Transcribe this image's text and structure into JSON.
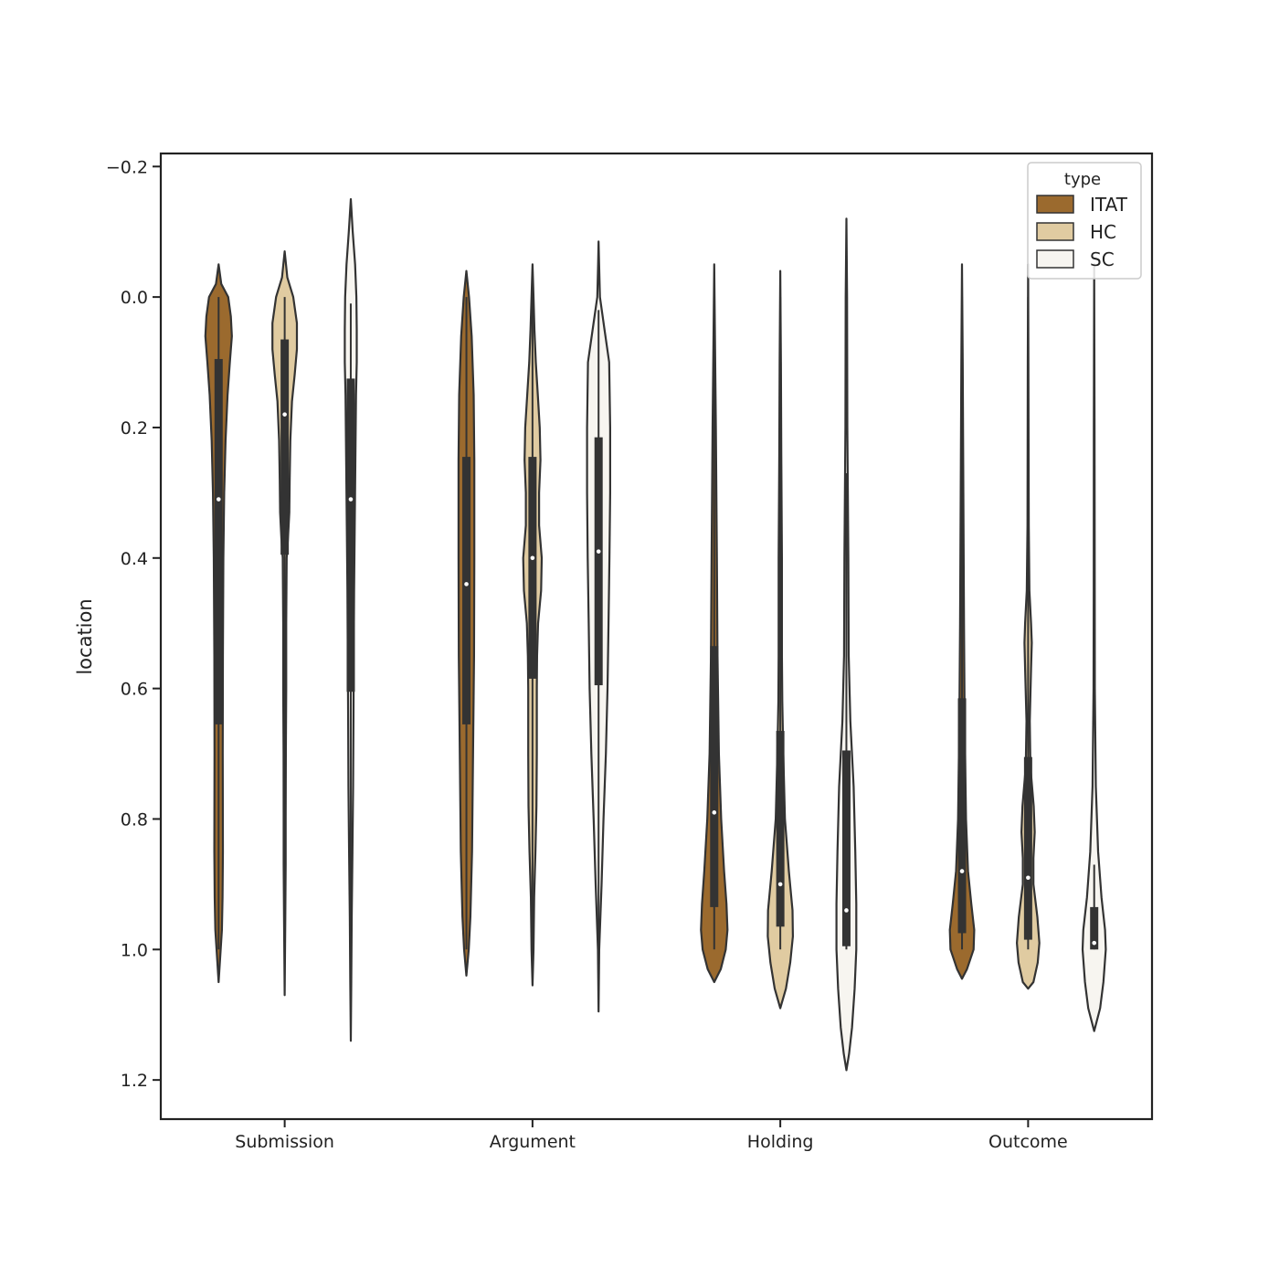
{
  "chart_data": {
    "type": "violin",
    "title": "",
    "xlabel": "",
    "ylabel": "location",
    "categories": [
      "Submission",
      "Argument",
      "Holding",
      "Outcome"
    ],
    "y_inverted": true,
    "ylim": [
      -0.22,
      1.26
    ],
    "yticks": [
      -0.2,
      0.0,
      0.2,
      0.4,
      0.6,
      0.8,
      1.0,
      1.2
    ],
    "ytick_labels": [
      "−0.2",
      "0.0",
      "0.2",
      "0.4",
      "0.6",
      "0.8",
      "1.0",
      "1.2"
    ],
    "grid": false,
    "legend": {
      "title": "type",
      "position": "top-right"
    },
    "series": [
      {
        "name": "ITAT",
        "color": "#9b6a2e",
        "violins": [
          {
            "q1": 0.095,
            "median": 0.31,
            "q3": 0.655,
            "whisker_low": 0.0,
            "whisker_high": 1.0,
            "extent": [
              -0.05,
              1.05
            ],
            "profile": [
              [
                -0.05,
                0
              ],
              [
                -0.02,
                0.08
              ],
              [
                0.0,
                0.29
              ],
              [
                0.03,
                0.37
              ],
              [
                0.06,
                0.4
              ],
              [
                0.1,
                0.34
              ],
              [
                0.15,
                0.27
              ],
              [
                0.22,
                0.21
              ],
              [
                0.3,
                0.17
              ],
              [
                0.4,
                0.145
              ],
              [
                0.55,
                0.13
              ],
              [
                0.7,
                0.125
              ],
              [
                0.85,
                0.13
              ],
              [
                0.92,
                0.12
              ],
              [
                0.97,
                0.1
              ],
              [
                1.01,
                0.05
              ],
              [
                1.05,
                0
              ]
            ]
          },
          {
            "q1": 0.245,
            "median": 0.44,
            "q3": 0.655,
            "whisker_low": 0.0,
            "whisker_high": 1.0,
            "extent": [
              -0.04,
              1.04
            ],
            "profile": [
              [
                -0.04,
                0
              ],
              [
                0.0,
                0.08
              ],
              [
                0.06,
                0.16
              ],
              [
                0.15,
                0.22
              ],
              [
                0.25,
                0.24
              ],
              [
                0.4,
                0.24
              ],
              [
                0.55,
                0.23
              ],
              [
                0.7,
                0.2
              ],
              [
                0.85,
                0.17
              ],
              [
                0.95,
                0.12
              ],
              [
                1.0,
                0.07
              ],
              [
                1.04,
                0
              ]
            ]
          },
          {
            "q1": 0.535,
            "median": 0.79,
            "q3": 0.935,
            "whisker_low": 0.0,
            "whisker_high": 1.0,
            "extent": [
              -0.05,
              1.05
            ],
            "profile": [
              [
                -0.05,
                0
              ],
              [
                0.05,
                0.02
              ],
              [
                0.2,
                0.05
              ],
              [
                0.4,
                0.08
              ],
              [
                0.55,
                0.1
              ],
              [
                0.7,
                0.14
              ],
              [
                0.8,
                0.21
              ],
              [
                0.88,
                0.3
              ],
              [
                0.93,
                0.37
              ],
              [
                0.97,
                0.4
              ],
              [
                1.0,
                0.35
              ],
              [
                1.03,
                0.2
              ],
              [
                1.05,
                0
              ]
            ]
          },
          {
            "q1": 0.615,
            "median": 0.88,
            "q3": 0.975,
            "whisker_low": 0.0,
            "whisker_high": 1.0,
            "extent": [
              -0.05,
              1.045
            ],
            "profile": [
              [
                -0.05,
                0
              ],
              [
                0.1,
                0.02
              ],
              [
                0.3,
                0.04
              ],
              [
                0.5,
                0.06
              ],
              [
                0.65,
                0.08
              ],
              [
                0.8,
                0.12
              ],
              [
                0.88,
                0.18
              ],
              [
                0.93,
                0.28
              ],
              [
                0.97,
                0.37
              ],
              [
                1.0,
                0.35
              ],
              [
                1.03,
                0.15
              ],
              [
                1.045,
                0
              ]
            ]
          }
        ]
      },
      {
        "name": "HC",
        "color": "#e0cba1",
        "violins": [
          {
            "q1": 0.065,
            "median": 0.18,
            "q3": 0.395,
            "whisker_low": 0.0,
            "whisker_high": 0.87,
            "extent": [
              -0.07,
              1.07
            ],
            "profile": [
              [
                -0.07,
                0
              ],
              [
                -0.03,
                0.08
              ],
              [
                0.0,
                0.26
              ],
              [
                0.04,
                0.37
              ],
              [
                0.08,
                0.37
              ],
              [
                0.12,
                0.3
              ],
              [
                0.16,
                0.22
              ],
              [
                0.22,
                0.17
              ],
              [
                0.28,
                0.15
              ],
              [
                0.33,
                0.14
              ],
              [
                0.37,
                0.1
              ],
              [
                0.4,
                0.06
              ],
              [
                0.5,
                0.045
              ],
              [
                0.6,
                0.045
              ],
              [
                0.7,
                0.035
              ],
              [
                0.8,
                0.03
              ],
              [
                0.87,
                0.03
              ],
              [
                0.95,
                0.02
              ],
              [
                1.07,
                0
              ]
            ]
          },
          {
            "q1": 0.245,
            "median": 0.4,
            "q3": 0.585,
            "whisker_low": 0.0,
            "whisker_high": 1.0,
            "extent": [
              -0.05,
              1.055
            ],
            "profile": [
              [
                -0.05,
                0
              ],
              [
                0.0,
                0.03
              ],
              [
                0.05,
                0.06
              ],
              [
                0.1,
                0.1
              ],
              [
                0.15,
                0.16
              ],
              [
                0.2,
                0.22
              ],
              [
                0.25,
                0.24
              ],
              [
                0.3,
                0.2
              ],
              [
                0.35,
                0.2
              ],
              [
                0.4,
                0.28
              ],
              [
                0.45,
                0.26
              ],
              [
                0.5,
                0.17
              ],
              [
                0.55,
                0.14
              ],
              [
                0.6,
                0.13
              ],
              [
                0.7,
                0.13
              ],
              [
                0.78,
                0.12
              ],
              [
                0.85,
                0.09
              ],
              [
                0.92,
                0.05
              ],
              [
                1.0,
                0.03
              ],
              [
                1.055,
                0
              ]
            ]
          },
          {
            "q1": 0.665,
            "median": 0.9,
            "q3": 0.965,
            "whisker_low": 0.0,
            "whisker_high": 1.0,
            "extent": [
              -0.04,
              1.09
            ],
            "profile": [
              [
                -0.04,
                0
              ],
              [
                0.1,
                0.02
              ],
              [
                0.24,
                0.03
              ],
              [
                0.4,
                0.05
              ],
              [
                0.55,
                0.05
              ],
              [
                0.62,
                0.06
              ],
              [
                0.7,
                0.09
              ],
              [
                0.8,
                0.14
              ],
              [
                0.88,
                0.26
              ],
              [
                0.94,
                0.37
              ],
              [
                0.98,
                0.38
              ],
              [
                1.02,
                0.3
              ],
              [
                1.06,
                0.17
              ],
              [
                1.09,
                0
              ]
            ]
          },
          {
            "q1": 0.705,
            "median": 0.89,
            "q3": 0.985,
            "whisker_low": 0.0,
            "whisker_high": 1.0,
            "extent": [
              -0.05,
              1.06
            ],
            "profile": [
              [
                -0.05,
                0
              ],
              [
                0.1,
                0.01
              ],
              [
                0.35,
                0.02
              ],
              [
                0.45,
                0.04
              ],
              [
                0.5,
                0.09
              ],
              [
                0.53,
                0.11
              ],
              [
                0.57,
                0.09
              ],
              [
                0.65,
                0.05
              ],
              [
                0.72,
                0.07
              ],
              [
                0.78,
                0.17
              ],
              [
                0.82,
                0.2
              ],
              [
                0.86,
                0.16
              ],
              [
                0.9,
                0.16
              ],
              [
                0.95,
                0.28
              ],
              [
                0.99,
                0.34
              ],
              [
                1.02,
                0.29
              ],
              [
                1.05,
                0.16
              ],
              [
                1.06,
                0
              ]
            ]
          }
        ]
      },
      {
        "name": "SC",
        "color": "#f7f5f0",
        "violins": [
          {
            "q1": 0.125,
            "median": 0.31,
            "q3": 0.605,
            "whisker_low": 0.01,
            "whisker_high": 0.98,
            "extent": [
              -0.15,
              1.14
            ],
            "profile": [
              [
                -0.15,
                0
              ],
              [
                -0.1,
                0.06
              ],
              [
                -0.05,
                0.13
              ],
              [
                0.0,
                0.17
              ],
              [
                0.05,
                0.18
              ],
              [
                0.1,
                0.18
              ],
              [
                0.15,
                0.16
              ],
              [
                0.25,
                0.14
              ],
              [
                0.35,
                0.12
              ],
              [
                0.45,
                0.1
              ],
              [
                0.55,
                0.09
              ],
              [
                0.65,
                0.08
              ],
              [
                0.75,
                0.07
              ],
              [
                0.85,
                0.05
              ],
              [
                0.95,
                0.03
              ],
              [
                1.05,
                0.015
              ],
              [
                1.14,
                0
              ]
            ]
          },
          {
            "q1": 0.215,
            "median": 0.39,
            "q3": 0.595,
            "whisker_low": 0.02,
            "whisker_high": 1.0,
            "extent": [
              -0.085,
              1.095
            ],
            "profile": [
              [
                -0.085,
                0
              ],
              [
                -0.05,
                0.015
              ],
              [
                0.0,
                0.04
              ],
              [
                0.05,
                0.18
              ],
              [
                0.1,
                0.32
              ],
              [
                0.2,
                0.35
              ],
              [
                0.3,
                0.35
              ],
              [
                0.4,
                0.33
              ],
              [
                0.5,
                0.3
              ],
              [
                0.6,
                0.27
              ],
              [
                0.7,
                0.22
              ],
              [
                0.8,
                0.15
              ],
              [
                0.9,
                0.09
              ],
              [
                1.0,
                0.02
              ],
              [
                1.095,
                0
              ]
            ]
          },
          {
            "q1": 0.695,
            "median": 0.94,
            "q3": 0.995,
            "whisker_low": 0.27,
            "whisker_high": 1.0,
            "extent": [
              -0.12,
              1.185
            ],
            "profile": [
              [
                -0.12,
                0
              ],
              [
                0.0,
                0.02
              ],
              [
                0.2,
                0.03
              ],
              [
                0.4,
                0.06
              ],
              [
                0.55,
                0.07
              ],
              [
                0.65,
                0.12
              ],
              [
                0.75,
                0.22
              ],
              [
                0.85,
                0.27
              ],
              [
                0.93,
                0.3
              ],
              [
                1.0,
                0.3
              ],
              [
                1.06,
                0.25
              ],
              [
                1.12,
                0.17
              ],
              [
                1.16,
                0.08
              ],
              [
                1.185,
                0
              ]
            ]
          },
          {
            "q1": 0.935,
            "median": 0.99,
            "q3": 1.0,
            "whisker_low": 0.87,
            "whisker_high": 1.0,
            "extent": [
              -0.05,
              1.125
            ],
            "profile": [
              [
                -0.05,
                0
              ],
              [
                0.2,
                0.01
              ],
              [
                0.45,
                0.015
              ],
              [
                0.6,
                0.02
              ],
              [
                0.75,
                0.05
              ],
              [
                0.85,
                0.12
              ],
              [
                0.92,
                0.22
              ],
              [
                0.97,
                0.33
              ],
              [
                1.0,
                0.35
              ],
              [
                1.05,
                0.28
              ],
              [
                1.09,
                0.18
              ],
              [
                1.125,
                0
              ]
            ]
          }
        ]
      }
    ]
  }
}
